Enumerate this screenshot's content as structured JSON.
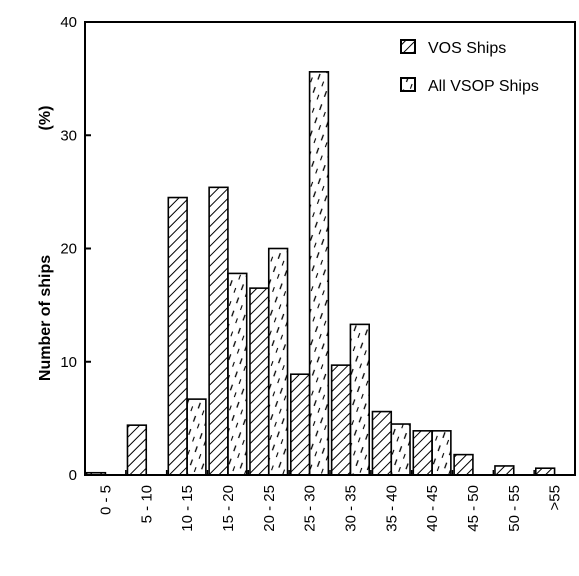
{
  "chart_data": {
    "type": "bar",
    "title": "",
    "xlabel": "",
    "ylabel": "Number of ships",
    "ylabel_unit": "(%)",
    "ylim": [
      0,
      40
    ],
    "yticks": [
      "0",
      "10",
      "20",
      "30",
      "40"
    ],
    "grid": false,
    "legend_position": "top-right",
    "categories": [
      "0 - 5",
      "5 - 10",
      "10 - 15",
      "15 - 20",
      "20 - 25",
      "25 - 30",
      "30 - 35",
      "35 - 40",
      "40 - 45",
      "45 - 50",
      "50 - 55",
      ">55"
    ],
    "series": [
      {
        "name": "VOS Ships",
        "pattern": "hatch-dense",
        "values": [
          0.2,
          4.4,
          24.5,
          25.4,
          16.5,
          8.9,
          9.7,
          5.6,
          3.9,
          1.8,
          0.8,
          0.6
        ]
      },
      {
        "name": "All VSOP Ships",
        "pattern": "dashes-sparse",
        "values": [
          0,
          0,
          6.7,
          17.8,
          20.0,
          35.6,
          13.3,
          4.5,
          3.9,
          0,
          0,
          0
        ]
      }
    ]
  }
}
